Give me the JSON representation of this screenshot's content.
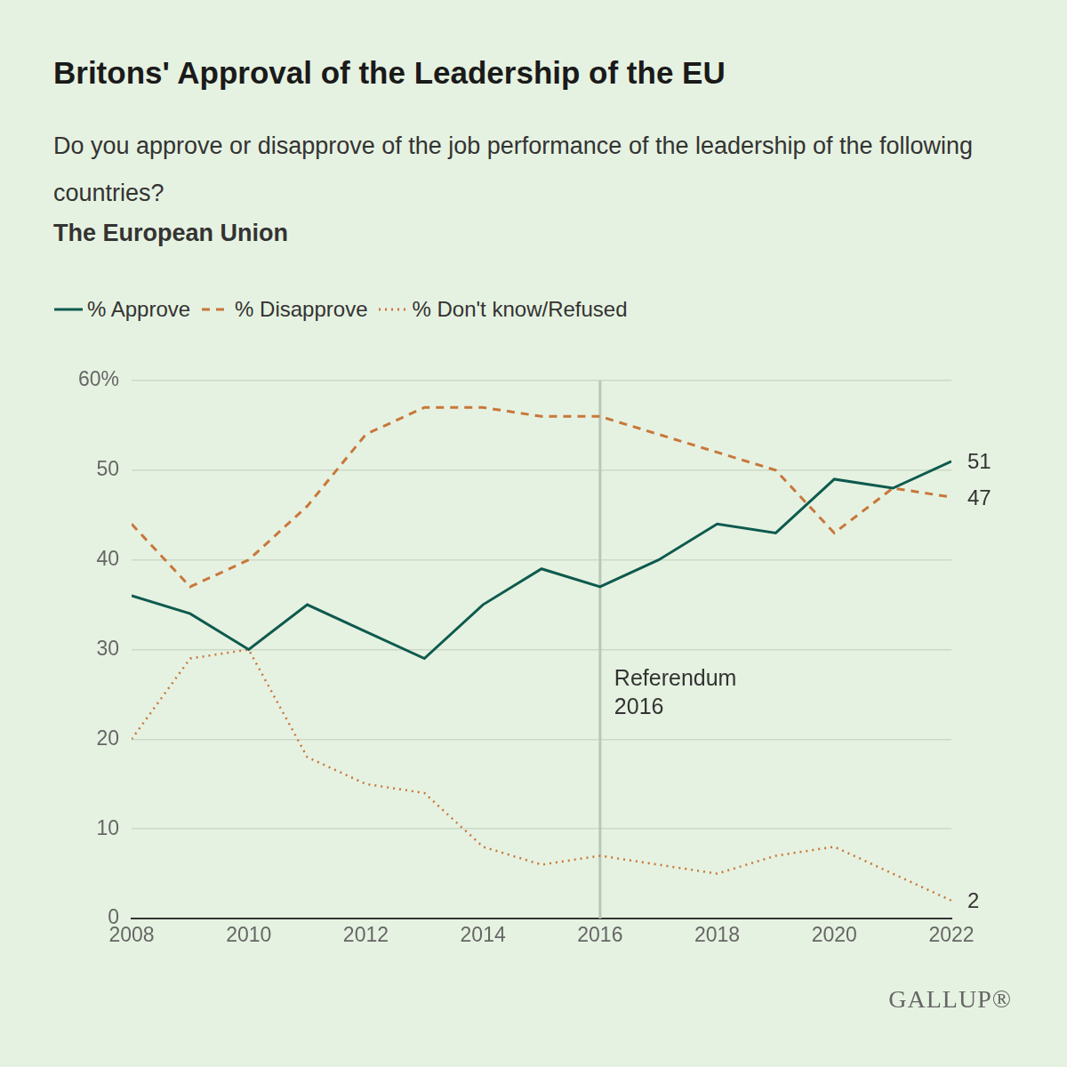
{
  "chart_data": {
    "type": "line",
    "title": "Britons' Approval of the Leadership of the EU",
    "subtitle": "Do you approve or disapprove of the job performance of the leadership of the following countries?",
    "panel_title": "The European Union",
    "x": [
      2008,
      2009,
      2010,
      2011,
      2012,
      2013,
      2014,
      2015,
      2016,
      2017,
      2018,
      2019,
      2020,
      2021,
      2022
    ],
    "xlim": [
      2008,
      2022
    ],
    "xticks": [
      2008,
      2010,
      2012,
      2014,
      2016,
      2018,
      2020,
      2022
    ],
    "ylim": [
      0,
      60
    ],
    "yticks": [
      0,
      10,
      20,
      30,
      40,
      50,
      {
        "value": 60,
        "label": "60%"
      }
    ],
    "grid": true,
    "legend": "top-left",
    "data_labels": true,
    "series": [
      {
        "name": "% Approve",
        "color": "#0e5a4e",
        "line_style": "solid",
        "values": [
          36,
          34,
          30,
          35,
          32,
          29,
          35,
          39,
          37,
          40,
          44,
          43,
          49,
          48,
          51
        ],
        "value_labels": [
          null,
          null,
          null,
          null,
          null,
          null,
          null,
          null,
          null,
          null,
          null,
          null,
          null,
          null,
          "51"
        ]
      },
      {
        "name": "% Disapprove",
        "color": "#c8773a",
        "line_style": "dashed",
        "values": [
          44,
          37,
          40,
          46,
          54,
          57,
          57,
          56,
          56,
          54,
          52,
          50,
          43,
          48,
          47
        ],
        "value_labels": [
          null,
          null,
          null,
          null,
          null,
          null,
          null,
          null,
          null,
          null,
          null,
          null,
          null,
          null,
          "47"
        ]
      },
      {
        "name": "% Don't know/Refused",
        "color": "#c8773a",
        "line_style": "dotted",
        "values": [
          20,
          29,
          30,
          18,
          15,
          14,
          8,
          6,
          7,
          6,
          5,
          7,
          8,
          5,
          2
        ],
        "value_labels": [
          null,
          null,
          null,
          null,
          null,
          null,
          null,
          null,
          null,
          null,
          null,
          null,
          null,
          null,
          "2"
        ]
      }
    ],
    "annotations": [
      {
        "x": 2016,
        "text": [
          "Referendum",
          "2016"
        ]
      }
    ],
    "source": "GALLUP®"
  }
}
